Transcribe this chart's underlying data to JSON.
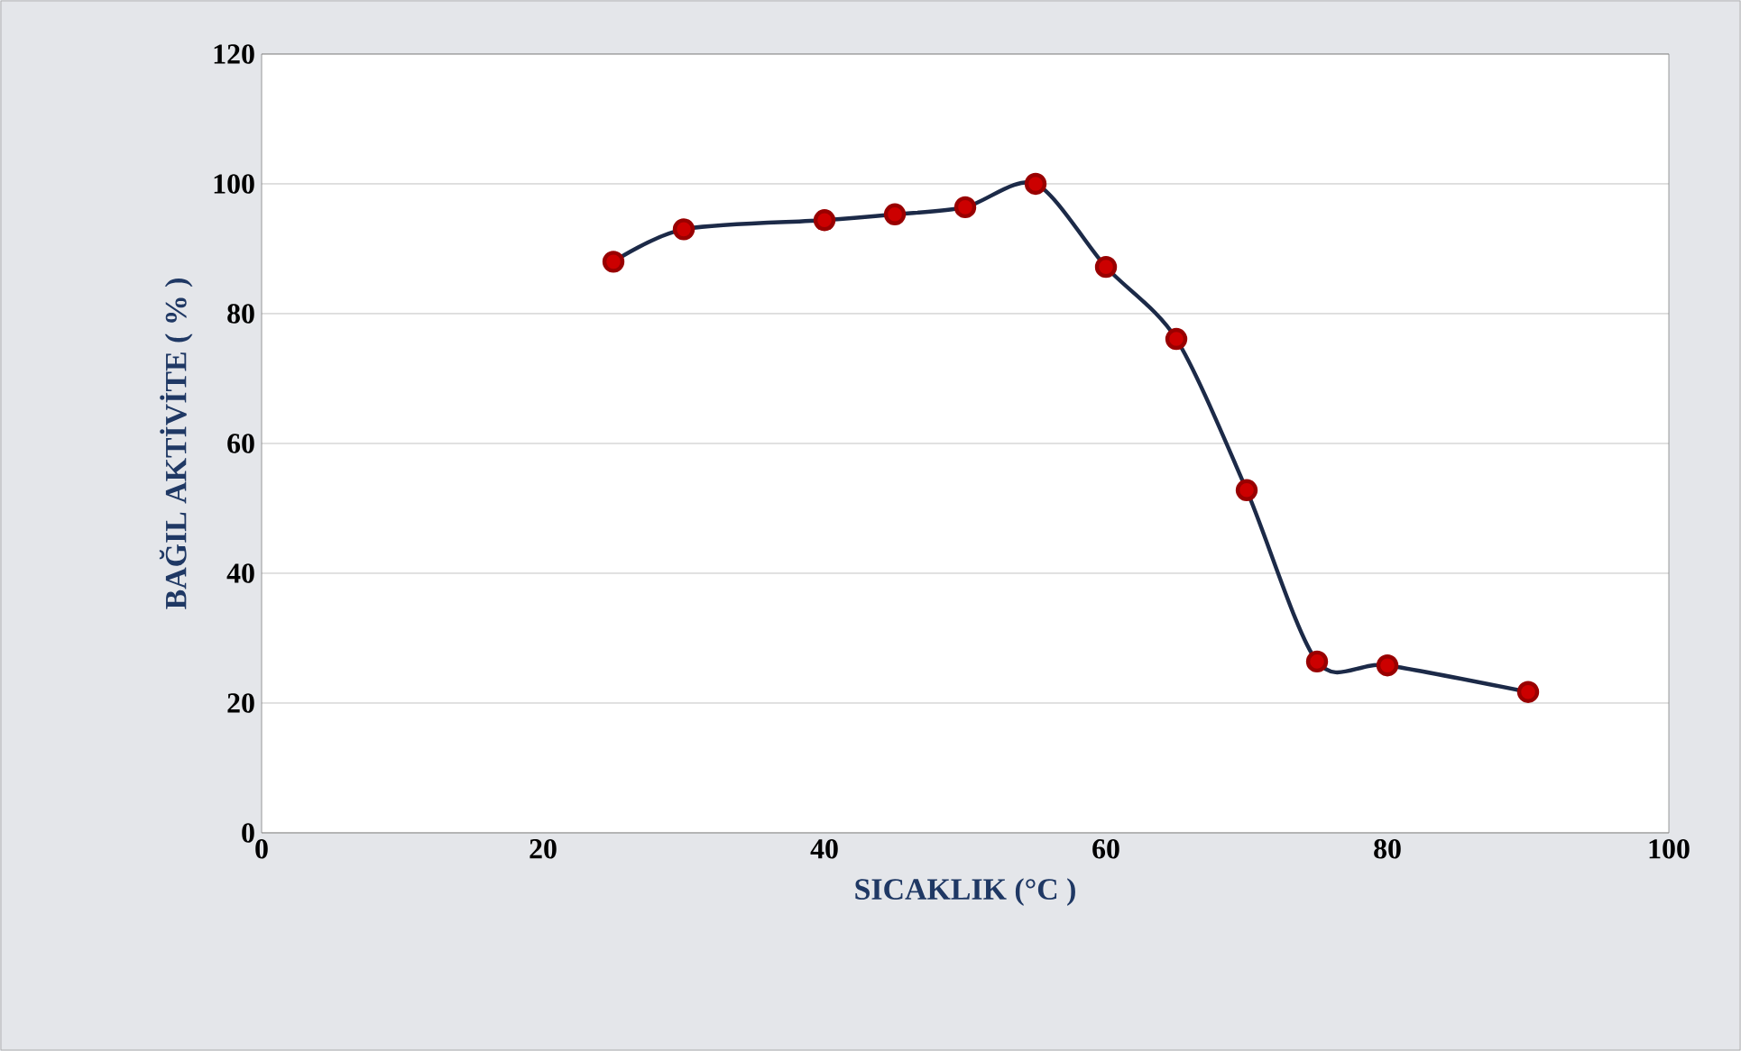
{
  "chart_data": {
    "type": "line",
    "xlabel": "SICAKLIK (°C )",
    "ylabel": "BAĞIL AKTİVİTE ( % )",
    "x": [
      25,
      30,
      40,
      45,
      50,
      55,
      60,
      65,
      70,
      75,
      80,
      90
    ],
    "series": [
      {
        "color": "#1c2a48",
        "values": [
          88,
          93,
          94.4,
          95.3,
          96.4,
          100,
          87.2,
          76.1,
          52.8,
          26.4,
          25.8,
          21.7
        ]
      }
    ],
    "xlim": [
      0,
      100
    ],
    "xticks": [
      0,
      20,
      40,
      60,
      80,
      100
    ],
    "ylim": [
      0,
      120
    ],
    "yticks": [
      0,
      20,
      40,
      60,
      80,
      100,
      120
    ],
    "grid": "y",
    "marker": "circle",
    "line_style": "solid"
  }
}
